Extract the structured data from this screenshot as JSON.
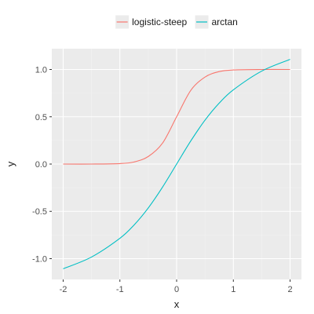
{
  "chart_data": {
    "type": "line",
    "title": "",
    "xlabel": "x",
    "ylabel": "y",
    "xlim": [
      -2.2,
      2.2
    ],
    "ylim": [
      -1.22,
      1.22
    ],
    "x_ticks": [
      -2,
      -1,
      0,
      1,
      2
    ],
    "x_tick_labels": [
      "-2",
      "-1",
      "0",
      "1",
      "2"
    ],
    "y_ticks": [
      -1.0,
      -0.5,
      0.0,
      0.5,
      1.0
    ],
    "y_tick_labels": [
      "-1.0",
      "-0.5",
      "0.0",
      "0.5",
      "1.0"
    ],
    "grid": true,
    "legend_position": "top",
    "x": [
      -2.0,
      -1.5,
      -1.0,
      -0.75,
      -0.5,
      -0.25,
      0.0,
      0.25,
      0.5,
      0.75,
      1.0,
      1.5,
      2.0
    ],
    "series": [
      {
        "name": "logistic-steep",
        "color": "#F8766D",
        "values": [
          0.0,
          0.0,
          0.005,
          0.022,
          0.08,
          0.22,
          0.5,
          0.78,
          0.92,
          0.978,
          0.995,
          1.0,
          1.0
        ]
      },
      {
        "name": "arctan",
        "color": "#00BFC4",
        "values": [
          -1.107,
          -0.983,
          -0.785,
          -0.644,
          -0.464,
          -0.245,
          0.0,
          0.245,
          0.464,
          0.644,
          0.785,
          0.983,
          1.107
        ]
      }
    ]
  },
  "colors": {
    "panel_background": "#EBEBEB",
    "grid_major": "#FFFFFF",
    "grid_minor": "#F2F2F2"
  }
}
